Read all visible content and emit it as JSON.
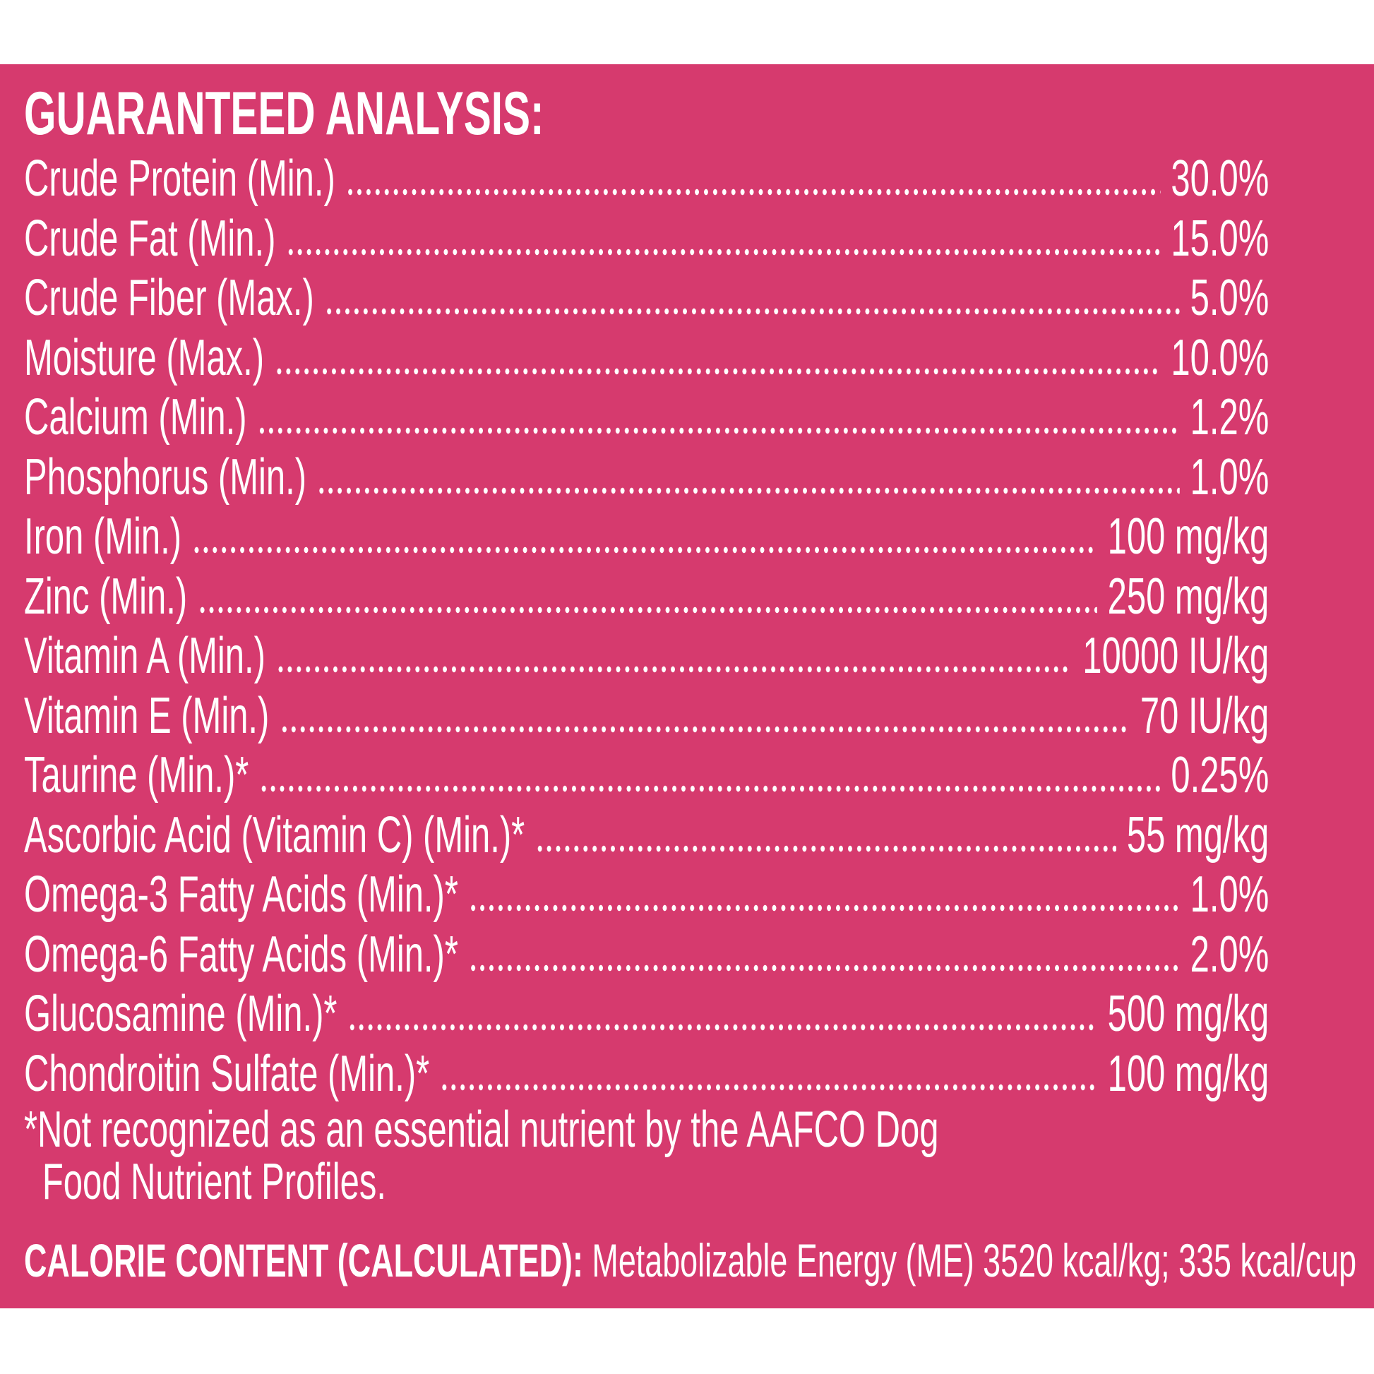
{
  "title": "GUARANTEED ANALYSIS:",
  "rows": [
    {
      "label": "Crude Protein (Min.)",
      "value": "30.0%"
    },
    {
      "label": "Crude Fat (Min.)",
      "value": "15.0%"
    },
    {
      "label": "Crude Fiber (Max.)",
      "value": "5.0%"
    },
    {
      "label": "Moisture (Max.)",
      "value": "10.0%"
    },
    {
      "label": "Calcium (Min.)",
      "value": "1.2%"
    },
    {
      "label": "Phosphorus (Min.)",
      "value": "1.0%"
    },
    {
      "label": "Iron (Min.)",
      "value": "100 mg/kg"
    },
    {
      "label": "Zinc (Min.)",
      "value": "250 mg/kg"
    },
    {
      "label": "Vitamin A (Min.)",
      "value": "10000 IU/kg"
    },
    {
      "label": "Vitamin E (Min.)",
      "value": "70 IU/kg"
    },
    {
      "label": "Taurine (Min.)*",
      "value": "0.25%"
    },
    {
      "label": "Ascorbic Acid (Vitamin C) (Min.)*",
      "value": "55 mg/kg"
    },
    {
      "label": "Omega-3 Fatty Acids (Min.)*",
      "value": "1.0%"
    },
    {
      "label": "Omega-6 Fatty Acids (Min.)*",
      "value": "2.0%"
    },
    {
      "label": "Glucosamine (Min.)*",
      "value": "500 mg/kg"
    },
    {
      "label": "Chondroitin Sulfate (Min.)*",
      "value": "100 mg/kg"
    }
  ],
  "footnote": [
    "*Not recognized as an essential nutrient by the AAFCO Dog",
    "Food Nutrient Profiles."
  ],
  "calorie": {
    "label": "CALORIE CONTENT (CALCULATED):",
    "text": "Metabolizable Energy (ME) 3520 kcal/kg; 335 kcal/cup"
  }
}
